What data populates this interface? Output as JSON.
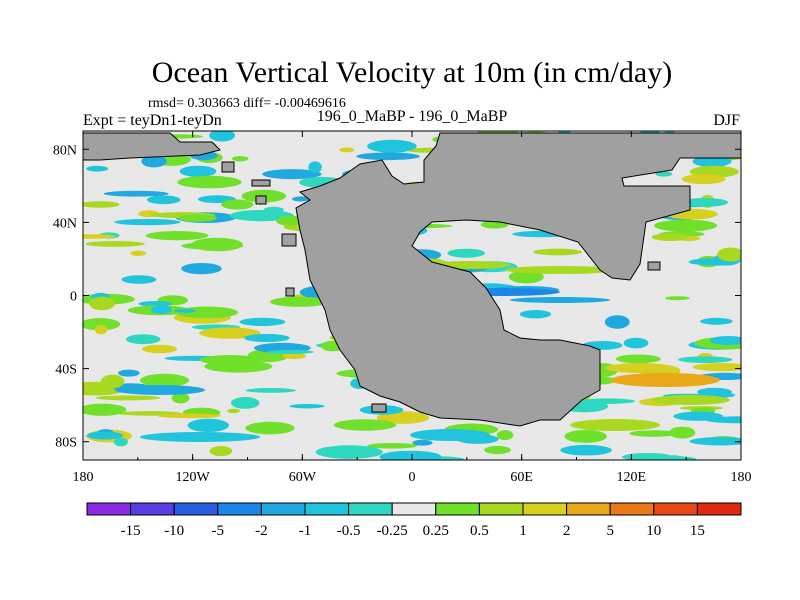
{
  "chart_data": {
    "type": "heatmap",
    "title": "Ocean Vertical Velocity at 10m (in cm/day)",
    "stats": "rmsd= 0.303663 diff= -0.00469616",
    "case_label": "196_0_MaBP - 196_0_MaBP",
    "expt_label": "Expt = teyDn1-teyDn",
    "season_label": "DJF",
    "x_range": [
      -180,
      180
    ],
    "y_range": [
      -90,
      90
    ],
    "x_ticks": [
      {
        "value": -180,
        "label": "180"
      },
      {
        "value": -120,
        "label": "120W"
      },
      {
        "value": -60,
        "label": "60W"
      },
      {
        "value": 0,
        "label": "0"
      },
      {
        "value": 60,
        "label": "60E"
      },
      {
        "value": 120,
        "label": "120E"
      },
      {
        "value": 180,
        "label": "180"
      }
    ],
    "y_ticks": [
      {
        "value": 80,
        "label": "80N"
      },
      {
        "value": 40,
        "label": "40N"
      },
      {
        "value": 0,
        "label": "0"
      },
      {
        "value": -40,
        "label": "40S"
      },
      {
        "value": -80,
        "label": "80S"
      }
    ],
    "colorbar": {
      "labels": [
        "-15",
        "-10",
        "-5",
        "-2",
        "-1",
        "-0.5",
        "-0.25",
        "0.25",
        "0.5",
        "1",
        "2",
        "5",
        "10",
        "15"
      ],
      "colors": [
        "#8a2be2",
        "#5a3fe0",
        "#2a5ce0",
        "#1b86e6",
        "#20a8e0",
        "#20c4dc",
        "#2ed8c0",
        "#e8e8e8",
        "#70e02a",
        "#a8d820",
        "#d8d020",
        "#e8a818",
        "#e87818",
        "#e84818",
        "#e02a10"
      ]
    },
    "land_color": "#a0a0a0",
    "background_color": "#e8e8e8"
  }
}
